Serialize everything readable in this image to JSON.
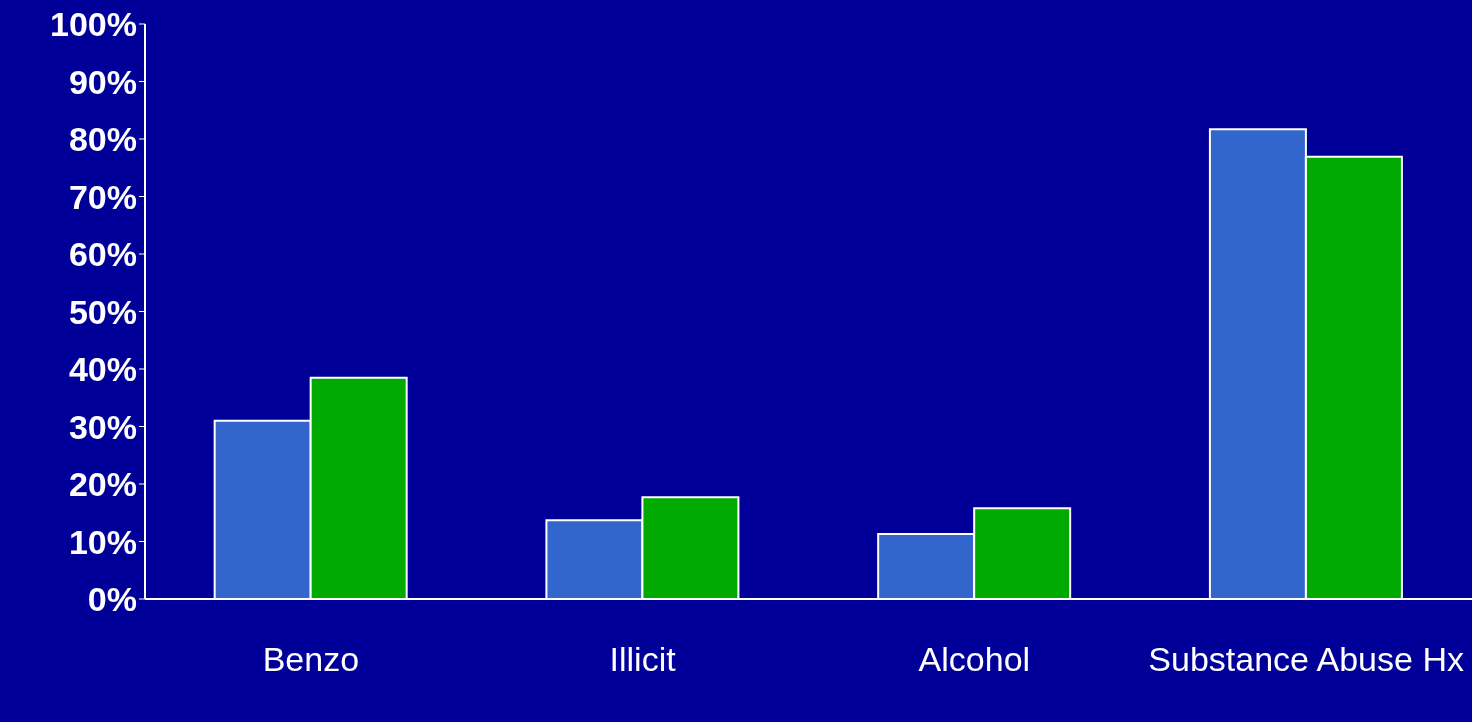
{
  "chart_data": {
    "type": "bar",
    "categories": [
      "Benzo",
      "Illicit",
      "Alcohol",
      "Substance Abuse Hx"
    ],
    "series": [
      {
        "color": "#3366cc",
        "values": [
          31,
          13.7,
          11.3,
          81.7
        ]
      },
      {
        "color": "#00aa00",
        "values": [
          38.5,
          17.7,
          15.8,
          76.9
        ]
      }
    ],
    "ylim": [
      0,
      100
    ],
    "yticks": [
      {
        "value": 0,
        "label": "0%"
      },
      {
        "value": 10,
        "label": "10%"
      },
      {
        "value": 20,
        "label": "20%"
      },
      {
        "value": 30,
        "label": "30%"
      },
      {
        "value": 40,
        "label": "40%"
      },
      {
        "value": 50,
        "label": "50%"
      },
      {
        "value": 60,
        "label": "60%"
      },
      {
        "value": 70,
        "label": "70%"
      },
      {
        "value": 80,
        "label": "80%"
      },
      {
        "value": 90,
        "label": "90%"
      },
      {
        "value": 100,
        "label": "100%"
      }
    ],
    "grid": false,
    "legend": false
  }
}
